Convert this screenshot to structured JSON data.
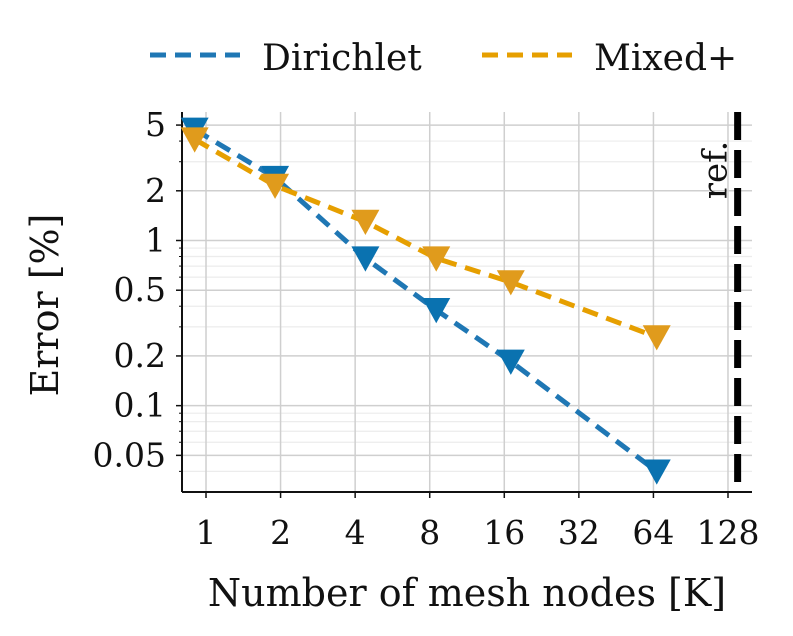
{
  "chart_data": {
    "type": "line",
    "xlabel": "Number of mesh nodes [K]",
    "ylabel": "Error [%]",
    "x_scale": "log2",
    "y_scale": "log10",
    "xlim": [
      0.8,
      160
    ],
    "ylim": [
      0.03,
      6
    ],
    "x_ticks": [
      1,
      2,
      4,
      8,
      16,
      32,
      64,
      128
    ],
    "x_tick_labels": [
      "1",
      "2",
      "4",
      "8",
      "16",
      "32",
      "64",
      "128"
    ],
    "y_ticks": [
      0.05,
      0.1,
      0.2,
      0.5,
      1,
      2,
      5
    ],
    "y_tick_labels": [
      "0.05",
      "0.1",
      "0.2",
      "0.5",
      "1",
      "2",
      "5"
    ],
    "grid": true,
    "legend_placement": "top, outside",
    "series": [
      {
        "name": "Dirichlet",
        "color": "#1f77b4",
        "marker_color": "#0a72b0",
        "marker": "triangle-down",
        "x": [
          0.9,
          1.9,
          4.4,
          8.5,
          17,
          66
        ],
        "y": [
          4.7,
          2.4,
          0.78,
          0.38,
          0.185,
          0.04
        ]
      },
      {
        "name": "Mixed+",
        "color": "#e69f00",
        "marker_color": "#e09b1c",
        "marker": "triangle-down",
        "x": [
          0.9,
          1.9,
          4.4,
          8.5,
          17,
          66
        ],
        "y": [
          4.1,
          2.15,
          1.3,
          0.78,
          0.56,
          0.26
        ]
      }
    ],
    "reference_line": {
      "label": "ref.",
      "x": 140,
      "color": "#000000"
    }
  }
}
